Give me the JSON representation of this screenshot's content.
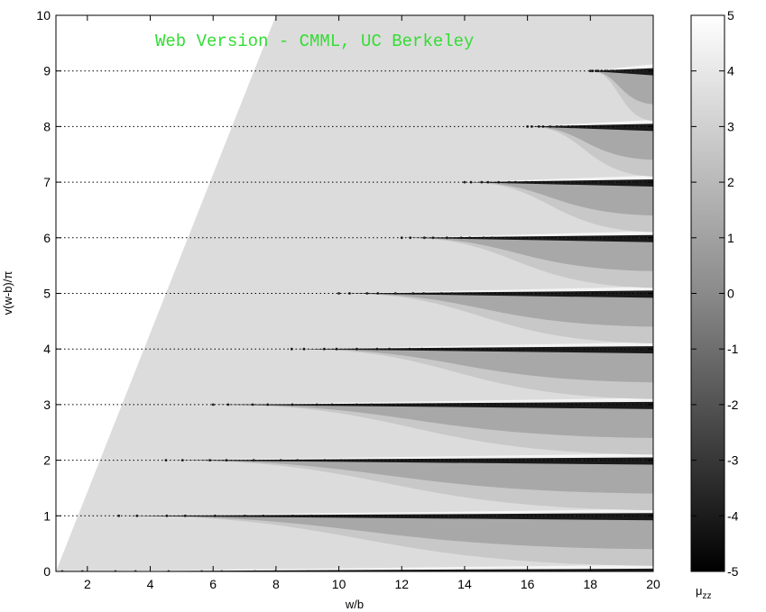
{
  "chart_data": {
    "type": "heatmap",
    "title": "",
    "watermark": "Web Version - CMML, UC Berkeley",
    "xlabel": "w/b",
    "ylabel": "v(w-b)/π",
    "xlim": [
      1,
      20
    ],
    "ylim": [
      0,
      10
    ],
    "x_ticks": [
      2,
      4,
      6,
      8,
      10,
      12,
      14,
      16,
      18,
      20
    ],
    "y_ticks": [
      0,
      1,
      2,
      3,
      4,
      5,
      6,
      7,
      8,
      9,
      10
    ],
    "grid": "horizontal dotted lines at integer y",
    "colorbar": {
      "label": "μ",
      "label_subscript": "zz",
      "range": [
        -5,
        5
      ],
      "ticks": [
        -5,
        -4,
        -3,
        -2,
        -1,
        0,
        1,
        2,
        3,
        4,
        5
      ],
      "colormap": "gray",
      "low_color": "#000000",
      "high_color": "#ffffff"
    },
    "colors": {
      "background_region": "#dcdcdc",
      "unfilled_region": "#ffffff",
      "band_dark": "#1a1a1a",
      "band_mid": "#a8a8a8",
      "band_light": "#c8c8c8",
      "watermark": "#33dd33"
    },
    "region_boundary": {
      "description": "colored region lies right of the line from (1,0) to (8,10)",
      "x": [
        1,
        8
      ],
      "y": [
        0,
        10
      ]
    },
    "bands": [
      {
        "level": 0,
        "onset_x": 1.2
      },
      {
        "level": 1,
        "onset_x": 3.0
      },
      {
        "level": 2,
        "onset_x": 4.5
      },
      {
        "level": 3,
        "onset_x": 6.0
      },
      {
        "level": 4,
        "onset_x": 8.5
      },
      {
        "level": 5,
        "onset_x": 10.0
      },
      {
        "level": 6,
        "onset_x": 12.0
      },
      {
        "level": 7,
        "onset_x": 14.0
      },
      {
        "level": 8,
        "onset_x": 16.0
      },
      {
        "level": 9,
        "onset_x": 18.0
      }
    ]
  }
}
